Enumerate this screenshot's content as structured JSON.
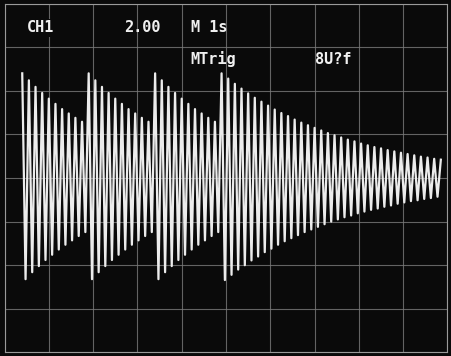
{
  "chart_data": {
    "type": "line",
    "annotations": [
      "CH1",
      "2.00",
      "M 1s",
      "MTrig",
      "8U?f"
    ],
    "x": [
      0.4,
      0.475,
      0.55,
      0.625,
      0.7,
      0.775,
      0.85,
      0.925,
      1.0,
      1.075,
      1.15,
      1.225,
      1.3,
      1.375,
      1.45,
      1.525,
      1.6,
      1.675,
      1.75,
      1.825,
      1.9,
      1.975,
      2.05,
      2.125,
      2.2,
      2.275,
      2.35,
      2.425,
      2.5,
      2.575,
      2.65,
      2.725,
      2.8,
      2.875,
      2.95,
      3.025,
      3.1,
      3.175,
      3.25,
      3.325,
      3.4,
      3.475,
      3.55,
      3.625,
      3.7,
      3.775,
      3.85,
      3.925,
      4.0,
      4.075,
      4.15,
      4.225,
      4.3,
      4.375,
      4.45,
      4.525,
      4.6,
      4.675,
      4.75,
      4.825,
      4.9,
      4.975,
      5.05,
      5.125,
      5.2,
      5.275,
      5.35,
      5.425,
      5.5,
      5.575,
      5.65,
      5.725,
      5.8,
      5.875,
      5.95,
      6.025,
      6.1,
      6.175,
      6.25,
      6.325,
      6.4,
      6.475,
      6.55,
      6.625,
      6.7,
      6.775,
      6.85,
      6.925,
      7.0,
      7.075,
      7.15,
      7.225,
      7.3,
      7.375,
      7.45,
      7.525,
      7.6,
      7.675,
      7.75,
      7.825,
      7.9,
      7.975,
      8.05,
      8.125,
      8.2,
      8.275,
      8.35,
      8.425,
      8.5,
      8.575,
      8.65,
      8.725,
      8.8,
      8.875,
      8.95,
      9.025,
      9.1,
      9.175,
      9.25,
      9.325,
      9.4,
      9.475,
      9.55,
      9.625,
      9.7,
      9.775,
      9.85
    ],
    "values": [
      2.4,
      -2.32,
      2.24,
      -2.16,
      2.09,
      -2.02,
      1.95,
      -1.88,
      1.82,
      -1.76,
      1.7,
      -1.64,
      1.58,
      -1.53,
      1.48,
      -1.43,
      1.38,
      -1.33,
      1.29,
      -1.24,
      2.4,
      -2.32,
      2.24,
      -2.16,
      2.09,
      -2.02,
      1.95,
      -1.88,
      1.82,
      -1.76,
      1.7,
      -1.64,
      1.58,
      -1.53,
      1.48,
      -1.43,
      1.38,
      -1.33,
      1.29,
      -1.24,
      2.4,
      -2.32,
      2.24,
      -2.16,
      2.09,
      -2.02,
      1.95,
      -1.88,
      1.82,
      -1.76,
      1.7,
      -1.64,
      1.58,
      -1.53,
      1.48,
      -1.43,
      1.38,
      -1.33,
      1.29,
      -1.24,
      2.4,
      -2.34,
      2.28,
      -2.22,
      2.16,
      -2.1,
      2.05,
      -2.0,
      1.94,
      -1.89,
      1.84,
      -1.8,
      1.75,
      -1.7,
      1.66,
      -1.62,
      1.57,
      -1.53,
      1.49,
      -1.45,
      1.42,
      -1.38,
      1.34,
      -1.31,
      1.27,
      -1.24,
      1.21,
      -1.18,
      1.15,
      -1.12,
      1.09,
      -1.06,
      1.03,
      -1.0,
      0.98,
      -0.95,
      0.93,
      -0.9,
      0.88,
      -0.86,
      0.84,
      -0.81,
      0.79,
      -0.77,
      0.75,
      -0.73,
      0.71,
      -0.7,
      0.68,
      -0.66,
      0.64,
      -0.63,
      0.61,
      -0.59,
      0.58,
      -0.56,
      0.55,
      -0.53,
      0.52,
      -0.51,
      0.49,
      -0.48,
      0.47,
      -0.46,
      0.44,
      -0.43,
      0.42
    ],
    "color": "#ececec",
    "line_style": "solid",
    "xlim": [
      0,
      10
    ],
    "xticks": [
      0,
      1,
      2,
      3,
      4,
      5,
      6,
      7,
      8,
      9,
      10
    ],
    "ylim": [
      -4,
      4
    ],
    "yticks": [
      -4,
      -3,
      -2,
      -1,
      0,
      1,
      2,
      3,
      4
    ],
    "grid": true,
    "tick_labels": false
  }
}
